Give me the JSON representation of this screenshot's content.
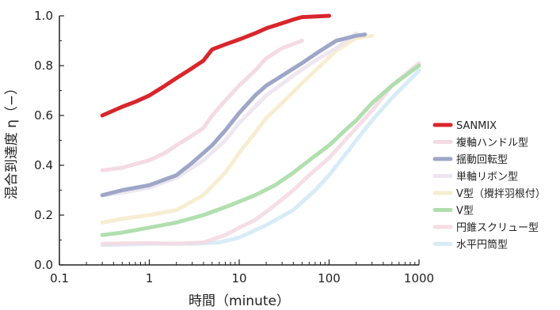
{
  "chart_data": {
    "type": "line",
    "x_scale": "log",
    "xlim": [
      0.1,
      1000
    ],
    "ylim": [
      0.0,
      1.0
    ],
    "xlabel": "時間（minute）",
    "ylabel": "混合到達度 η（−）",
    "grid": false,
    "legend_position": "right",
    "x_ticks": [
      {
        "value": 0.1,
        "label": "0.1"
      },
      {
        "value": 1,
        "label": "1"
      },
      {
        "value": 10,
        "label": "10"
      },
      {
        "value": 100,
        "label": "100"
      },
      {
        "value": 1000,
        "label": "1000"
      }
    ],
    "y_ticks": [
      {
        "value": 0.0,
        "label": "0.0"
      },
      {
        "value": 0.2,
        "label": "0.2"
      },
      {
        "value": 0.4,
        "label": "0.4"
      },
      {
        "value": 0.6,
        "label": "0.6"
      },
      {
        "value": 0.8,
        "label": "0.8"
      },
      {
        "value": 1.0,
        "label": "1.0"
      }
    ],
    "series": [
      {
        "name": "SANMIX",
        "color": "#d8262b",
        "width": 5,
        "opacity": 1.0,
        "points": [
          [
            0.3,
            0.6
          ],
          [
            0.5,
            0.635
          ],
          [
            0.7,
            0.655
          ],
          [
            1.0,
            0.68
          ],
          [
            1.5,
            0.72
          ],
          [
            2.0,
            0.75
          ],
          [
            3.0,
            0.79
          ],
          [
            4.0,
            0.82
          ],
          [
            5.0,
            0.865
          ],
          [
            7.0,
            0.885
          ],
          [
            10,
            0.905
          ],
          [
            15,
            0.93
          ],
          [
            20,
            0.95
          ],
          [
            30,
            0.97
          ],
          [
            40,
            0.985
          ],
          [
            50,
            0.995
          ],
          [
            100,
            1.0
          ]
        ]
      },
      {
        "name": "複軸ハンドル型",
        "color": "#f3d7e0",
        "width": 5,
        "opacity": 0.9,
        "points": [
          [
            0.3,
            0.38
          ],
          [
            0.5,
            0.39
          ],
          [
            1.0,
            0.42
          ],
          [
            1.5,
            0.45
          ],
          [
            2.0,
            0.48
          ],
          [
            3.0,
            0.52
          ],
          [
            4.0,
            0.55
          ],
          [
            5.0,
            0.6
          ],
          [
            7.0,
            0.66
          ],
          [
            10,
            0.72
          ],
          [
            15,
            0.78
          ],
          [
            20,
            0.83
          ],
          [
            30,
            0.87
          ],
          [
            50,
            0.9
          ]
        ]
      },
      {
        "name": "揺動回転型",
        "color": "#9ea6c8",
        "width": 5,
        "opacity": 1.0,
        "points": [
          [
            0.3,
            0.28
          ],
          [
            0.5,
            0.3
          ],
          [
            1.0,
            0.32
          ],
          [
            2.0,
            0.36
          ],
          [
            3.0,
            0.41
          ],
          [
            5.0,
            0.48
          ],
          [
            7.0,
            0.54
          ],
          [
            10,
            0.61
          ],
          [
            15,
            0.68
          ],
          [
            20,
            0.72
          ],
          [
            30,
            0.76
          ],
          [
            50,
            0.81
          ],
          [
            80,
            0.86
          ],
          [
            120,
            0.9
          ],
          [
            200,
            0.92
          ],
          [
            250,
            0.925
          ]
        ]
      },
      {
        "name": "単軸リボン型",
        "color": "#ece4f0",
        "width": 5,
        "opacity": 0.9,
        "points": [
          [
            0.3,
            0.28
          ],
          [
            0.5,
            0.29
          ],
          [
            1.0,
            0.31
          ],
          [
            2.0,
            0.35
          ],
          [
            4.0,
            0.42
          ],
          [
            7.0,
            0.5
          ],
          [
            10,
            0.57
          ],
          [
            20,
            0.68
          ],
          [
            40,
            0.76
          ],
          [
            70,
            0.82
          ],
          [
            120,
            0.87
          ],
          [
            200,
            0.93
          ]
        ]
      },
      {
        "name": "V型（攪拌羽根付）",
        "color": "#f6eccd",
        "width": 5,
        "opacity": 0.9,
        "points": [
          [
            0.3,
            0.17
          ],
          [
            0.5,
            0.185
          ],
          [
            1.0,
            0.2
          ],
          [
            2.0,
            0.22
          ],
          [
            4.0,
            0.28
          ],
          [
            7.0,
            0.37
          ],
          [
            10,
            0.45
          ],
          [
            15,
            0.53
          ],
          [
            20,
            0.59
          ],
          [
            30,
            0.65
          ],
          [
            50,
            0.73
          ],
          [
            80,
            0.8
          ],
          [
            120,
            0.86
          ],
          [
            200,
            0.91
          ],
          [
            300,
            0.92
          ]
        ]
      },
      {
        "name": "V型",
        "color": "#a8dba6",
        "width": 5,
        "opacity": 0.9,
        "points": [
          [
            0.3,
            0.12
          ],
          [
            0.5,
            0.13
          ],
          [
            1.0,
            0.15
          ],
          [
            2.0,
            0.17
          ],
          [
            4.0,
            0.2
          ],
          [
            8.0,
            0.24
          ],
          [
            15,
            0.28
          ],
          [
            25,
            0.32
          ],
          [
            40,
            0.37
          ],
          [
            60,
            0.42
          ],
          [
            100,
            0.48
          ],
          [
            150,
            0.54
          ],
          [
            200,
            0.58
          ],
          [
            300,
            0.65
          ],
          [
            500,
            0.72
          ],
          [
            1000,
            0.8
          ]
        ]
      },
      {
        "name": "円錐スクリュー型",
        "color": "#f4dae2",
        "width": 5,
        "opacity": 0.9,
        "points": [
          [
            0.3,
            0.085
          ],
          [
            1.0,
            0.088
          ],
          [
            2.0,
            0.085
          ],
          [
            4.0,
            0.09
          ],
          [
            7.0,
            0.12
          ],
          [
            10,
            0.15
          ],
          [
            15,
            0.18
          ],
          [
            25,
            0.24
          ],
          [
            40,
            0.3
          ],
          [
            60,
            0.36
          ],
          [
            100,
            0.43
          ],
          [
            150,
            0.5
          ],
          [
            200,
            0.55
          ],
          [
            300,
            0.62
          ],
          [
            500,
            0.72
          ],
          [
            1000,
            0.81
          ]
        ]
      },
      {
        "name": "水平円筒型",
        "color": "#d4eaf6",
        "width": 5,
        "opacity": 0.9,
        "points": [
          [
            0.3,
            0.08
          ],
          [
            1.0,
            0.085
          ],
          [
            3.0,
            0.085
          ],
          [
            6.0,
            0.09
          ],
          [
            10,
            0.11
          ],
          [
            20,
            0.16
          ],
          [
            40,
            0.22
          ],
          [
            70,
            0.3
          ],
          [
            100,
            0.36
          ],
          [
            200,
            0.5
          ],
          [
            300,
            0.58
          ],
          [
            500,
            0.67
          ],
          [
            1000,
            0.78
          ]
        ]
      }
    ]
  }
}
